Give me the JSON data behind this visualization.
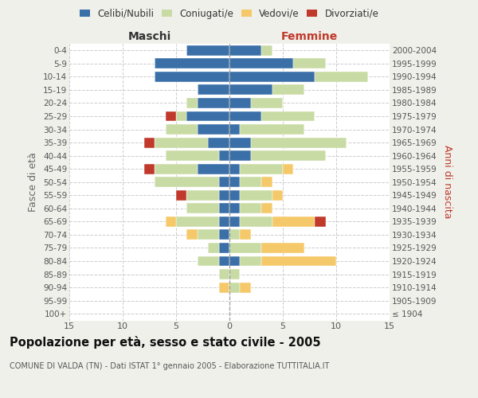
{
  "age_groups": [
    "100+",
    "95-99",
    "90-94",
    "85-89",
    "80-84",
    "75-79",
    "70-74",
    "65-69",
    "60-64",
    "55-59",
    "50-54",
    "45-49",
    "40-44",
    "35-39",
    "30-34",
    "25-29",
    "20-24",
    "15-19",
    "10-14",
    "5-9",
    "0-4"
  ],
  "birth_years": [
    "≤ 1904",
    "1905-1909",
    "1910-1914",
    "1915-1919",
    "1920-1924",
    "1925-1929",
    "1930-1934",
    "1935-1939",
    "1940-1944",
    "1945-1949",
    "1950-1954",
    "1955-1959",
    "1960-1964",
    "1965-1969",
    "1970-1974",
    "1975-1979",
    "1980-1984",
    "1985-1989",
    "1990-1994",
    "1995-1999",
    "2000-2004"
  ],
  "males": {
    "celibi": [
      0,
      0,
      0,
      0,
      1,
      1,
      1,
      1,
      1,
      1,
      1,
      3,
      1,
      2,
      3,
      4,
      3,
      3,
      7,
      7,
      4
    ],
    "coniugati": [
      0,
      0,
      0,
      1,
      2,
      1,
      2,
      4,
      3,
      3,
      6,
      4,
      5,
      5,
      3,
      1,
      1,
      0,
      0,
      0,
      0
    ],
    "vedovi": [
      0,
      0,
      1,
      0,
      0,
      0,
      1,
      1,
      0,
      0,
      0,
      0,
      0,
      0,
      0,
      0,
      0,
      0,
      0,
      0,
      0
    ],
    "divorziati": [
      0,
      0,
      0,
      0,
      0,
      0,
      0,
      0,
      0,
      1,
      0,
      1,
      0,
      1,
      0,
      1,
      0,
      0,
      0,
      0,
      0
    ]
  },
  "females": {
    "nubili": [
      0,
      0,
      0,
      0,
      1,
      0,
      0,
      1,
      1,
      1,
      1,
      1,
      2,
      2,
      1,
      3,
      2,
      4,
      8,
      6,
      3
    ],
    "coniugate": [
      0,
      0,
      1,
      1,
      2,
      3,
      1,
      3,
      2,
      3,
      2,
      4,
      7,
      9,
      6,
      5,
      3,
      3,
      5,
      3,
      1
    ],
    "vedove": [
      0,
      0,
      1,
      0,
      7,
      4,
      1,
      4,
      1,
      1,
      1,
      1,
      0,
      0,
      0,
      0,
      0,
      0,
      0,
      0,
      0
    ],
    "divorziate": [
      0,
      0,
      0,
      0,
      0,
      0,
      0,
      1,
      0,
      0,
      0,
      0,
      0,
      0,
      0,
      0,
      0,
      0,
      0,
      0,
      0
    ]
  },
  "colors": {
    "celibi_nubili": "#3a6fa8",
    "coniugati_e": "#c9dba4",
    "vedovi_e": "#f5c96a",
    "divorziati_e": "#c0392b"
  },
  "xlim": 15,
  "title": "Popolazione per età, sesso e stato civile - 2005",
  "subtitle": "COMUNE DI VALDA (TN) - Dati ISTAT 1° gennaio 2005 - Elaborazione TUTTITALIA.IT",
  "ylabel_left": "Fasce di età",
  "ylabel_right": "Anni di nascita",
  "xlabel_left": "Maschi",
  "xlabel_right": "Femmine",
  "background_color": "#f0f0eb",
  "plot_bg": "#ffffff"
}
